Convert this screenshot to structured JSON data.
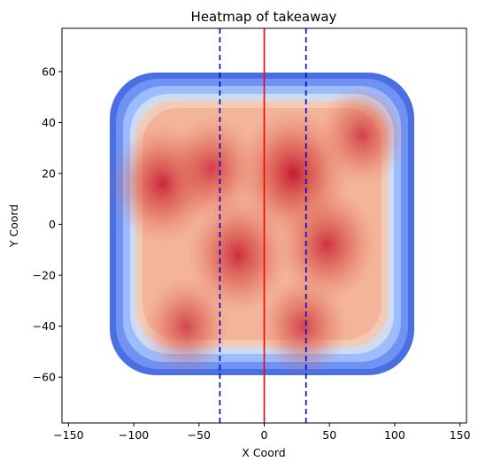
{
  "chart_data": {
    "type": "heatmap",
    "title": "Heatmap of takeaway",
    "xlabel": "X Coord",
    "ylabel": "Y Coord",
    "xlim": [
      -155,
      155
    ],
    "ylim": [
      -78,
      77
    ],
    "x_ticks": [
      -150,
      -100,
      -50,
      0,
      50,
      100,
      150
    ],
    "y_ticks": [
      -60,
      -40,
      -20,
      0,
      20,
      40,
      60
    ],
    "x_tick_labels": [
      "−150",
      "−100",
      "−50",
      "0",
      "50",
      "100",
      "150"
    ],
    "y_tick_labels": [
      "−60",
      "−40",
      "−20",
      "0",
      "20",
      "40",
      "60"
    ],
    "grid": false,
    "colormap": "coolwarm",
    "density_extent": {
      "x": [
        -118,
        115
      ],
      "y": [
        -59,
        58
      ]
    },
    "density_hotspots": [
      {
        "x": 22,
        "y": 20,
        "intensity": 1.0
      },
      {
        "x": -78,
        "y": 16,
        "intensity": 0.85
      },
      {
        "x": -20,
        "y": -12,
        "intensity": 0.8
      },
      {
        "x": 48,
        "y": -8,
        "intensity": 0.75
      },
      {
        "x": -40,
        "y": 22,
        "intensity": 0.6
      },
      {
        "x": 75,
        "y": 35,
        "intensity": 0.55
      },
      {
        "x": -60,
        "y": -40,
        "intensity": 0.5
      },
      {
        "x": 30,
        "y": -40,
        "intensity": 0.55
      }
    ],
    "reference_lines": [
      {
        "x": 0,
        "style": "solid",
        "color": "#ff0000"
      },
      {
        "x": -34,
        "style": "dashed",
        "color": "#0000cc"
      },
      {
        "x": 32,
        "style": "dashed",
        "color": "#0000cc"
      }
    ]
  }
}
